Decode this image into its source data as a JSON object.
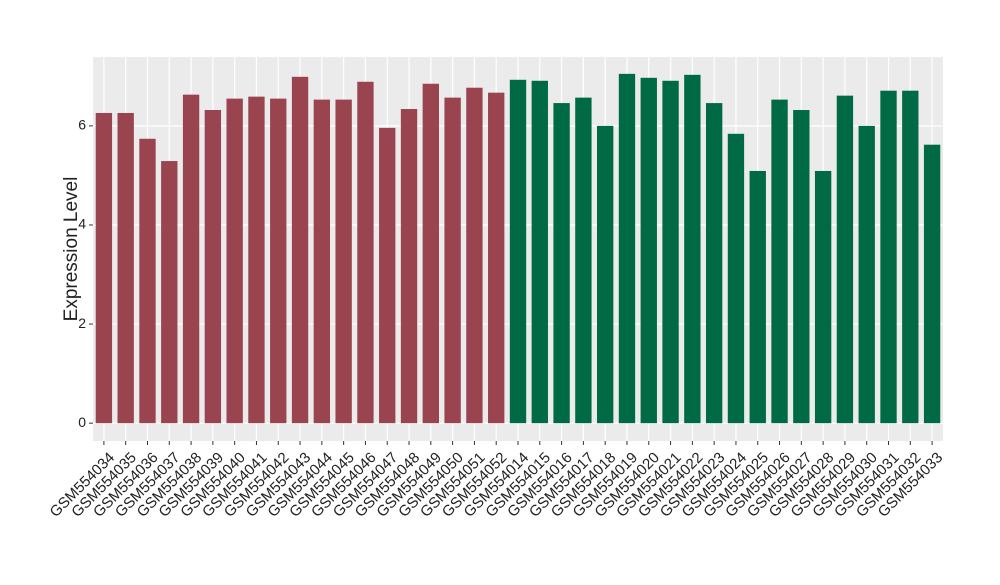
{
  "chart_data": {
    "type": "bar",
    "y_label": "Expression Level",
    "categories": [
      "GSM554034",
      "GSM554035",
      "GSM554036",
      "GSM554037",
      "GSM554038",
      "GSM554039",
      "GSM554040",
      "GSM554041",
      "GSM554042",
      "GSM554043",
      "GSM554044",
      "GSM554045",
      "GSM554046",
      "GSM554047",
      "GSM554048",
      "GSM554049",
      "GSM554050",
      "GSM554051",
      "GSM554052",
      "GSM554014",
      "GSM554015",
      "GSM554016",
      "GSM554017",
      "GSM554018",
      "GSM554019",
      "GSM554020",
      "GSM554021",
      "GSM554022",
      "GSM554023",
      "GSM554024",
      "GSM554025",
      "GSM554026",
      "GSM554027",
      "GSM554028",
      "GSM554029",
      "GSM554030",
      "GSM554031",
      "GSM554032",
      "GSM554033"
    ],
    "values": [
      6.26,
      6.26,
      5.74,
      5.29,
      6.63,
      6.32,
      6.55,
      6.59,
      6.55,
      6.99,
      6.53,
      6.53,
      6.89,
      5.96,
      6.34,
      6.85,
      6.57,
      6.77,
      6.67,
      6.93,
      6.91,
      6.46,
      6.57,
      6.0,
      7.05,
      6.97,
      6.91,
      7.03,
      6.46,
      5.84,
      5.09,
      6.53,
      6.32,
      5.09,
      6.61,
      6.0,
      6.71,
      6.71,
      5.62
    ],
    "colors": [
      "#9a4450",
      "#9a4450",
      "#9a4450",
      "#9a4450",
      "#9a4450",
      "#9a4450",
      "#9a4450",
      "#9a4450",
      "#9a4450",
      "#9a4450",
      "#9a4450",
      "#9a4450",
      "#9a4450",
      "#9a4450",
      "#9a4450",
      "#9a4450",
      "#9a4450",
      "#9a4450",
      "#9a4450",
      "#006a45",
      "#006a45",
      "#006a45",
      "#006a45",
      "#006a45",
      "#006a45",
      "#006a45",
      "#006a45",
      "#006a45",
      "#006a45",
      "#006a45",
      "#006a45",
      "#006a45",
      "#006a45",
      "#006a45",
      "#006a45",
      "#006a45",
      "#006a45",
      "#006a45",
      "#006a45"
    ],
    "ylim": [
      -0.36,
      7.39
    ],
    "yticks": [
      0,
      2,
      4,
      6
    ],
    "grid": true
  }
}
